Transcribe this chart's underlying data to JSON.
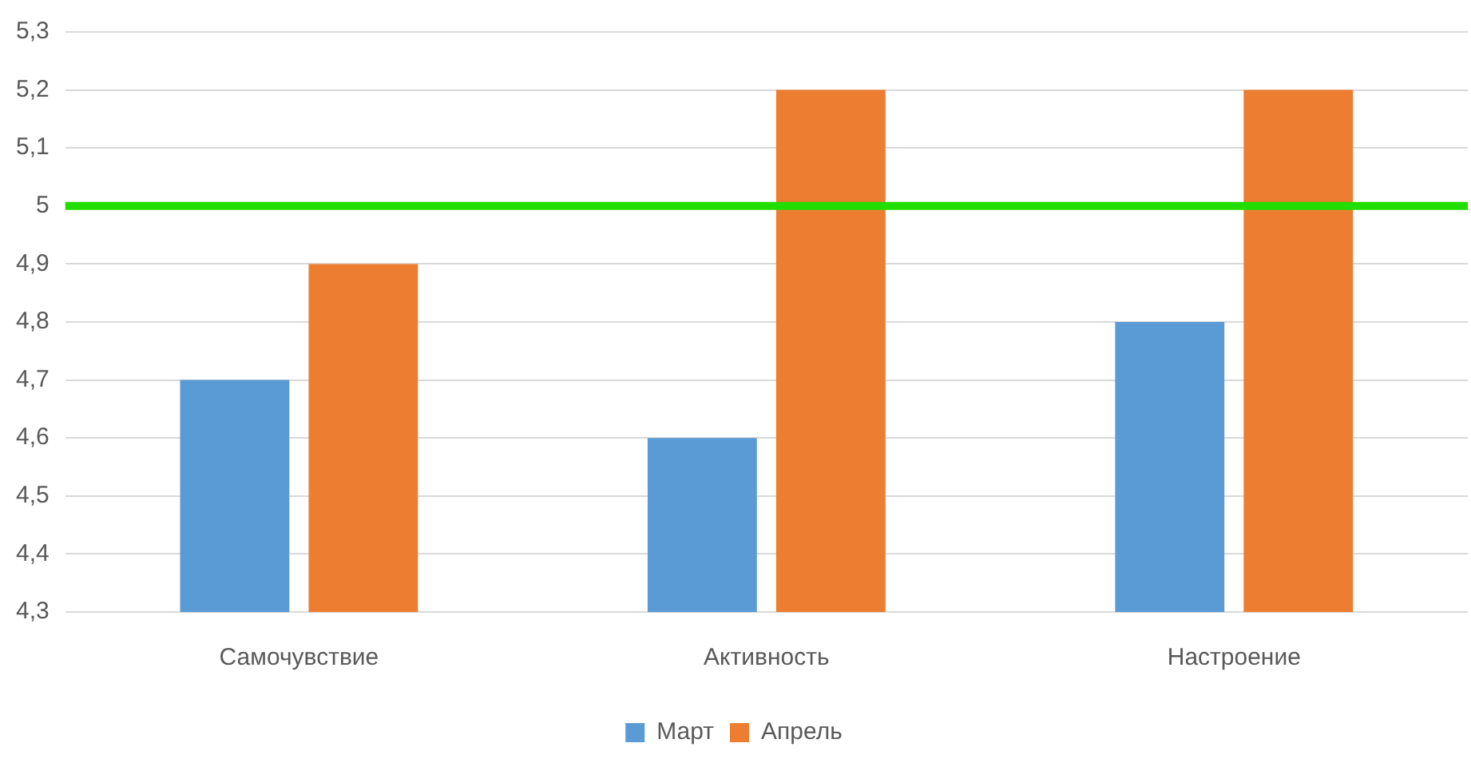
{
  "chart_data": {
    "type": "bar",
    "categories": [
      "Самочувствие",
      "Активность",
      "Настроение"
    ],
    "series": [
      {
        "name": "Март",
        "color": "#5b9bd5",
        "values": [
          4.7,
          4.6,
          4.8
        ]
      },
      {
        "name": "Апрель",
        "color": "#ed7d31",
        "values": [
          4.9,
          5.2,
          5.2
        ]
      }
    ],
    "ylim": [
      4.3,
      5.3
    ],
    "yticks": [
      {
        "value": 4.3,
        "label": "4,3"
      },
      {
        "value": 4.4,
        "label": "4,4"
      },
      {
        "value": 4.5,
        "label": "4,5"
      },
      {
        "value": 4.6,
        "label": "4,6"
      },
      {
        "value": 4.7,
        "label": "4,7"
      },
      {
        "value": 4.8,
        "label": "4,8"
      },
      {
        "value": 4.9,
        "label": "4,9"
      },
      5,
      {
        "value": 5.1,
        "label": "5,1"
      },
      {
        "value": 5.2,
        "label": "5,2"
      },
      {
        "value": 5.3,
        "label": "5,3"
      }
    ],
    "ref_lines": [
      {
        "axis": "y",
        "value": 5,
        "color": "#22dd00"
      }
    ],
    "grid": "y",
    "legend": "bottom"
  }
}
